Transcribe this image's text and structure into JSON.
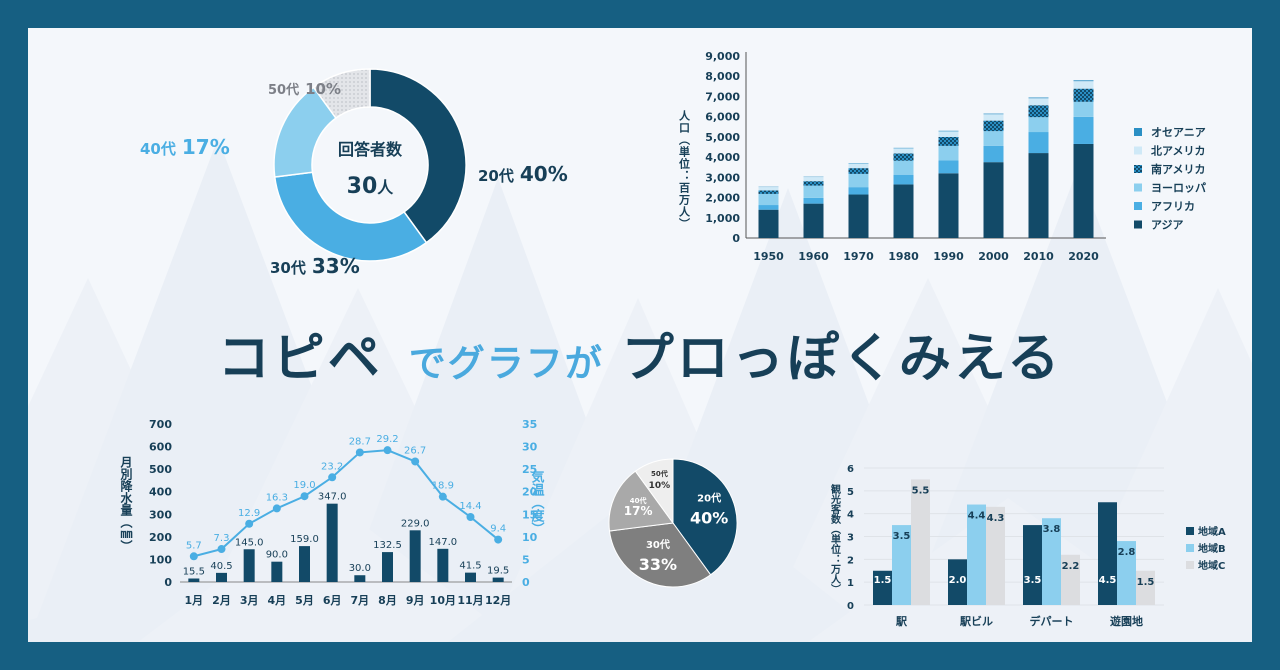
{
  "headline": {
    "part1": "コピペ",
    "part2": "でグラフが",
    "part3": "プロっぽくみえる"
  },
  "colors": {
    "background": "#165f82",
    "panel": "#f4f7fb",
    "navy": "#124a68",
    "blue": "#4aaee3",
    "lightblue": "#8ccfee",
    "gray": "#dcdde0",
    "headline": "#173f57"
  },
  "chart_data": [
    {
      "id": "donut",
      "type": "pie",
      "style": "donut",
      "center_label": "回答者数",
      "center_value": "30",
      "center_unit": "人",
      "slices": [
        {
          "label": "20代",
          "value": 40,
          "display": "40%",
          "color": "#124a68"
        },
        {
          "label": "30代",
          "value": 33,
          "display": "33%",
          "color": "#4aaee3"
        },
        {
          "label": "40代",
          "value": 17,
          "display": "17%",
          "color": "#8ccfee"
        },
        {
          "label": "50代",
          "value": 10,
          "display": "10%",
          "color": "#dcdde0"
        }
      ]
    },
    {
      "id": "population",
      "type": "bar",
      "stacked": true,
      "ylabel": "人口（単位：百万人）",
      "categories": [
        "1950",
        "1960",
        "1970",
        "1980",
        "1990",
        "2000",
        "2010",
        "2020"
      ],
      "ylim": [
        0,
        9000
      ],
      "yticks": [
        "0",
        "1,000",
        "2,000",
        "3,000",
        "4,000",
        "5,000",
        "6,000",
        "7,000",
        "8,000",
        "9,000"
      ],
      "legend_position": "right",
      "series": [
        {
          "name": "アジア",
          "color": "#124a68",
          "values": [
            1400,
            1700,
            2150,
            2650,
            3200,
            3750,
            4200,
            4650
          ]
        },
        {
          "name": "アフリカ",
          "color": "#4aaee3",
          "values": [
            230,
            285,
            365,
            480,
            635,
            810,
            1040,
            1340
          ]
        },
        {
          "name": "ヨーロッパ",
          "color": "#8ccfee",
          "values": [
            550,
            605,
            655,
            690,
            720,
            725,
            735,
            745
          ]
        },
        {
          "name": "南アメリカ",
          "color": "#1f5f80",
          "values": [
            170,
            220,
            285,
            360,
            440,
            520,
            590,
            650
          ]
        },
        {
          "name": "北アメリカ",
          "color": "#cfe9f7",
          "values": [
            170,
            205,
            230,
            255,
            280,
            315,
            345,
            370
          ]
        },
        {
          "name": "オセアニア",
          "color": "#2a8fc4",
          "values": [
            15,
            16,
            20,
            23,
            27,
            31,
            37,
            43
          ]
        }
      ]
    },
    {
      "id": "climate",
      "type": "bar",
      "combo": "bar+line",
      "categories": [
        "1月",
        "2月",
        "3月",
        "4月",
        "5月",
        "6月",
        "7月",
        "8月",
        "9月",
        "10月",
        "11月",
        "12月"
      ],
      "bar_series": {
        "name": "月別降水量（㎜）",
        "values": [
          15.5,
          40.5,
          145.0,
          90.0,
          159.0,
          347.0,
          30.0,
          132.5,
          229.0,
          147.0,
          41.5,
          19.5
        ],
        "labels": [
          "15.5",
          "40.5",
          "145.0",
          "90.0",
          "159.0",
          "347.0",
          "30.0",
          "132.5",
          "229.0",
          "147.0",
          "41.5",
          "19.5"
        ],
        "color": "#124a68"
      },
      "line_series": {
        "name": "気温（度）",
        "values": [
          5.7,
          7.3,
          12.9,
          16.3,
          19.0,
          23.2,
          28.7,
          29.2,
          26.7,
          18.9,
          14.4,
          9.4
        ],
        "labels": [
          "5.7",
          "7.3",
          "12.9",
          "16.3",
          "19.0",
          "23.2",
          "28.7",
          "29.2",
          "26.7",
          "18.9",
          "14.4",
          "9.4"
        ],
        "color": "#4aaee3"
      },
      "y_left": {
        "label": "月別降水量（㎜）",
        "range": [
          0,
          700
        ],
        "ticks": [
          "0",
          "100",
          "200",
          "300",
          "400",
          "500",
          "600",
          "700"
        ]
      },
      "y_right": {
        "label": "気温（度）",
        "range": [
          0,
          35
        ],
        "ticks": [
          "0",
          "5",
          "10",
          "15",
          "20",
          "25",
          "30",
          "35"
        ]
      }
    },
    {
      "id": "pie-gray",
      "type": "pie",
      "slices": [
        {
          "label": "20代",
          "value": 40,
          "display": "40%",
          "color": "#124a68"
        },
        {
          "label": "30代",
          "value": 33,
          "display": "33%",
          "color": "#7f7f7f"
        },
        {
          "label": "40代",
          "value": 17,
          "display": "17%",
          "color": "#a9a9a9"
        },
        {
          "label": "50代",
          "value": 10,
          "display": "10%",
          "color": "#eeeeee"
        }
      ]
    },
    {
      "id": "tourism",
      "type": "bar",
      "grouped": true,
      "ylabel": "観光客数（単位：万人）",
      "categories": [
        "駅",
        "駅ビル",
        "デパート",
        "遊園地"
      ],
      "ylim": [
        0,
        6
      ],
      "yticks": [
        "0",
        "1",
        "2",
        "3",
        "4",
        "5",
        "6"
      ],
      "legend_position": "right",
      "series": [
        {
          "name": "地域A",
          "color": "#124a68",
          "values": [
            1.5,
            2.0,
            3.5,
            4.5
          ],
          "labels": [
            "1.5",
            "2.0",
            "3.5",
            "4.5"
          ]
        },
        {
          "name": "地域B",
          "color": "#8ccfee",
          "values": [
            3.5,
            4.4,
            3.8,
            2.8
          ],
          "labels": [
            "3.5",
            "4.4",
            "3.8",
            "2.8"
          ]
        },
        {
          "name": "地域C",
          "color": "#dcdde0",
          "values": [
            5.5,
            4.3,
            2.2,
            1.5
          ],
          "labels": [
            "5.5",
            "4.3",
            "2.2",
            "1.5"
          ]
        }
      ]
    }
  ]
}
